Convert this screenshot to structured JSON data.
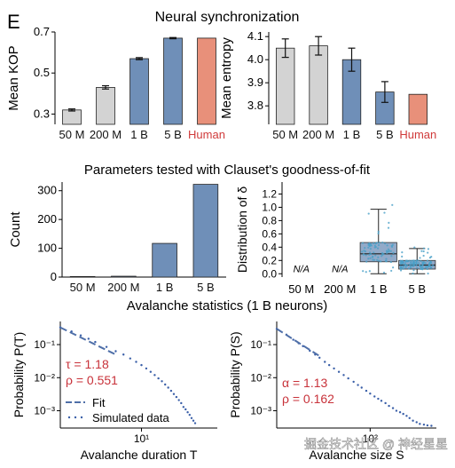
{
  "panel_label": "E",
  "section_titles": {
    "neural": "Neural synchronization",
    "params": "Parameters tested with Clauset's goodness-of-fit",
    "avalanche": "Avalanche statistics (1 B neurons)"
  },
  "watermark": "掘金技术社区 @ 神经星星",
  "colors": {
    "gray": "#d3d3d3",
    "blue": "#6f8fb8",
    "human": "#e8907a",
    "human_text": "#d03a3a",
    "dots": "#3a5fa8",
    "fit": "#4f6fa8",
    "box": "#7f9bbf",
    "annot": "#c8323a"
  },
  "chart_data": [
    {
      "id": "kop",
      "type": "bar",
      "title": "Neural synchronization",
      "ylabel": "Mean KOP",
      "categories": [
        "50 M",
        "200 M",
        "1 B",
        "5 B",
        "Human"
      ],
      "values": [
        0.32,
        0.43,
        0.57,
        0.67,
        0.67
      ],
      "errors": [
        0.005,
        0.008,
        0.005,
        0.003,
        0
      ],
      "ylim": [
        0.25,
        0.7
      ],
      "yticks": [
        "0.3",
        "0.5",
        "0.7"
      ],
      "ytick_values": [
        0.3,
        0.5,
        0.7
      ]
    },
    {
      "id": "entropy",
      "type": "bar",
      "ylabel": "Mean entropy",
      "categories": [
        "50 M",
        "200 M",
        "1 B",
        "5 B",
        "Human"
      ],
      "values": [
        4.05,
        4.06,
        4.0,
        3.86,
        3.85
      ],
      "errors": [
        0.04,
        0.04,
        0.05,
        0.045,
        0
      ],
      "ylim": [
        3.72,
        4.12
      ],
      "yticks": [
        "4.1",
        "4.0",
        "3.9",
        "3.8"
      ],
      "ytick_values": [
        4.1,
        4.0,
        3.9,
        3.8
      ]
    },
    {
      "id": "count",
      "type": "bar",
      "title": "Parameters tested with Clauset's goodness-of-fit",
      "ylabel": "Count",
      "categories": [
        "50 M",
        "200 M",
        "1 B",
        "5 B"
      ],
      "values": [
        2,
        3,
        117,
        322
      ],
      "ylim": [
        0,
        330
      ],
      "yticks": [
        "0",
        "100",
        "200",
        "300"
      ],
      "ytick_values": [
        0,
        100,
        200,
        300
      ]
    },
    {
      "id": "delta",
      "type": "box",
      "ylabel": "Distribution of δ",
      "categories": [
        "50 M",
        "200 M",
        "1 B",
        "5 B"
      ],
      "na_label": "N/A",
      "boxes": [
        null,
        null,
        {
          "whisker_low": 0.0,
          "q1": 0.18,
          "median": 0.3,
          "q3": 0.47,
          "whisker_high": 0.97
        },
        {
          "whisker_low": 0.0,
          "q1": 0.07,
          "median": 0.13,
          "q3": 0.2,
          "whisker_high": 0.38
        }
      ],
      "ylim": [
        -0.05,
        1.38
      ],
      "yticks": [
        "0.0",
        "0.2",
        "0.4",
        "0.6",
        "0.8",
        "1.0",
        "1.2"
      ],
      "ytick_values": [
        0.0,
        0.2,
        0.4,
        0.6,
        0.8,
        1.0,
        1.2
      ]
    },
    {
      "id": "duration",
      "type": "scatter",
      "title": "Avalanche statistics (1 B neurons)",
      "xlabel": "Avalanche duration T",
      "ylabel": "Probability P(T)",
      "xscale": "log",
      "yscale": "log",
      "xticks": [
        "10¹"
      ],
      "ytick_labels": [
        "10⁻¹",
        "10⁻²",
        "10⁻³"
      ],
      "ytick_values": [
        0.1,
        0.01,
        0.001
      ],
      "xlim": [
        2,
        45
      ],
      "ylim": [
        0.0003,
        0.5
      ],
      "annotations": [
        "τ = 1.18",
        "ρ = 0.551"
      ],
      "legend": [
        "Fit",
        "Simulated data"
      ],
      "fit": {
        "x0": 2,
        "x1": 6,
        "y0": 0.33,
        "y1": 0.05
      },
      "points": [
        [
          2,
          0.33
        ],
        [
          2.5,
          0.25
        ],
        [
          3,
          0.19
        ],
        [
          3.5,
          0.15
        ],
        [
          4,
          0.12
        ],
        [
          5,
          0.085
        ],
        [
          6,
          0.063
        ],
        [
          7,
          0.05
        ],
        [
          8,
          0.038
        ],
        [
          9,
          0.03
        ],
        [
          10,
          0.024
        ],
        [
          11,
          0.019
        ],
        [
          12,
          0.015
        ],
        [
          13,
          0.012
        ],
        [
          14,
          0.0095
        ],
        [
          15,
          0.0078
        ],
        [
          16,
          0.0062
        ],
        [
          17,
          0.005
        ],
        [
          18,
          0.004
        ],
        [
          19,
          0.0032
        ],
        [
          20,
          0.0026
        ],
        [
          21,
          0.0021
        ],
        [
          22,
          0.0017
        ],
        [
          23,
          0.0013
        ],
        [
          24,
          0.0011
        ],
        [
          25,
          0.0009
        ],
        [
          26,
          0.00075
        ],
        [
          27,
          0.0006
        ],
        [
          28,
          0.0005
        ],
        [
          29,
          0.00042
        ]
      ]
    },
    {
      "id": "size",
      "type": "scatter",
      "xlabel": "Avalanche size S",
      "ylabel": "Probability P(S)",
      "xscale": "log",
      "yscale": "log",
      "xticks": [
        "10²"
      ],
      "ytick_labels": [
        "10⁻¹",
        "10⁻²",
        "10⁻³"
      ],
      "ytick_values": [
        0.1,
        0.01,
        0.001
      ],
      "xlim": [
        2,
        1600
      ],
      "ylim": [
        0.0003,
        0.5
      ],
      "annotations": [
        "α = 1.13",
        "ρ = 0.162"
      ],
      "fit": {
        "x0": 2,
        "x1": 12,
        "y0": 0.3,
        "y1": 0.045
      },
      "points": [
        [
          2,
          0.3
        ],
        [
          3,
          0.2
        ],
        [
          4,
          0.14
        ],
        [
          5,
          0.11
        ],
        [
          6,
          0.09
        ],
        [
          8,
          0.065
        ],
        [
          10,
          0.05
        ],
        [
          12,
          0.04
        ],
        [
          15,
          0.03
        ],
        [
          18,
          0.024
        ],
        [
          22,
          0.019
        ],
        [
          27,
          0.015
        ],
        [
          33,
          0.012
        ],
        [
          40,
          0.0095
        ],
        [
          50,
          0.0075
        ],
        [
          60,
          0.006
        ],
        [
          70,
          0.005
        ],
        [
          85,
          0.004
        ],
        [
          100,
          0.0033
        ],
        [
          120,
          0.0027
        ],
        [
          140,
          0.0023
        ],
        [
          160,
          0.002
        ],
        [
          190,
          0.0017
        ],
        [
          220,
          0.0014
        ],
        [
          260,
          0.0012
        ],
        [
          300,
          0.001
        ],
        [
          350,
          0.0009
        ],
        [
          400,
          0.0008
        ],
        [
          460,
          0.0007
        ],
        [
          520,
          0.0006
        ],
        [
          600,
          0.0005
        ],
        [
          700,
          0.00045
        ],
        [
          800,
          0.0004
        ],
        [
          950,
          0.00038
        ],
        [
          1100,
          0.00036
        ],
        [
          1300,
          0.00035
        ]
      ]
    }
  ]
}
